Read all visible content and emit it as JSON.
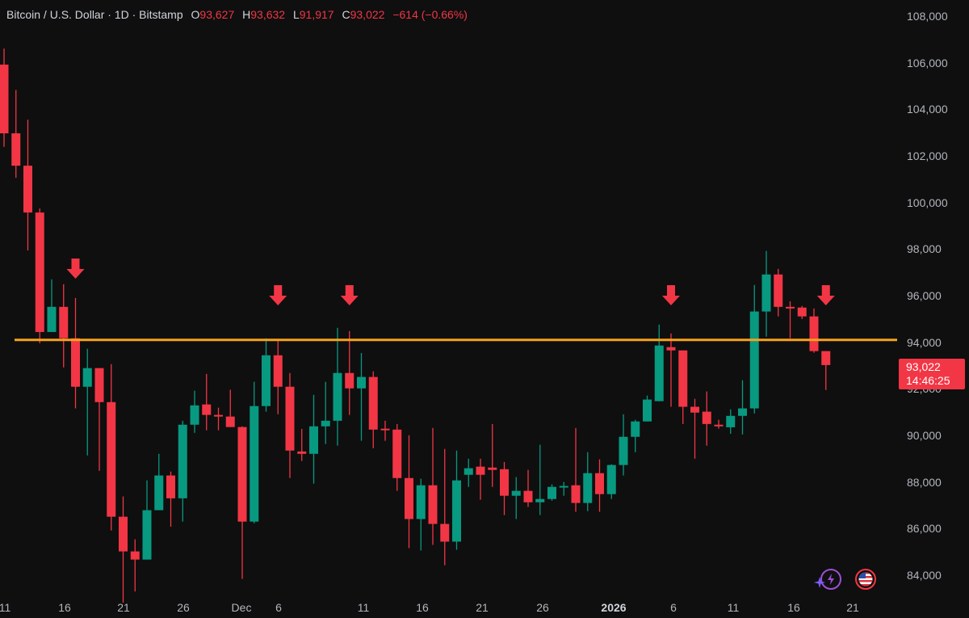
{
  "legend": {
    "symbol": "Bitcoin / U.S. Dollar · 1D · Bitstamp",
    "o_label": "O",
    "o_value": "93,627",
    "h_label": "H",
    "h_value": "93,632",
    "l_label": "L",
    "l_value": "91,917",
    "c_label": "C",
    "c_value": "93,022",
    "change": "−614 (−0.66%)"
  },
  "price_tag": {
    "price": "93,022",
    "countdown": "14:46:25"
  },
  "icons": {
    "left": "lightning-sparkle-icon",
    "right": "us-flag-icon"
  },
  "colors": {
    "up": "#089981",
    "down": "#f23645",
    "level_line": "#f7a21b",
    "arrow": "#f23645",
    "background": "#0f0f0f"
  },
  "chart_data": {
    "type": "candlestick",
    "title": "Bitcoin / U.S. Dollar · 1D · Bitstamp",
    "xlabel": "",
    "ylabel": "",
    "ylim": [
      83200,
      108700
    ],
    "y_ticks": [
      "108,000",
      "106,000",
      "104,000",
      "102,000",
      "100,000",
      "98,000",
      "96,000",
      "94,000",
      "92,000",
      "90,000",
      "88,000",
      "86,000",
      "84,000"
    ],
    "x_ticks": [
      "11",
      "16",
      "21",
      "26",
      "Dec",
      "6",
      "11",
      "16",
      "21",
      "26",
      "2026",
      "6",
      "11",
      "16",
      "21"
    ],
    "horizontal_level": 94100,
    "resistance_arrows_at_candle_index": [
      6,
      23,
      29,
      56,
      69
    ],
    "candles": [
      [
        105920,
        102970,
        106610,
        102390
      ],
      [
        102970,
        101580,
        104830,
        101060
      ],
      [
        101580,
        99570,
        103550,
        97940
      ],
      [
        99570,
        94440,
        99740,
        93960
      ],
      [
        94440,
        95520,
        96700,
        94440
      ],
      [
        95520,
        94170,
        96490,
        92920
      ],
      [
        94170,
        92090,
        95900,
        91160
      ],
      [
        92090,
        92890,
        93720,
        89140
      ],
      [
        92890,
        91430,
        92890,
        88480
      ],
      [
        91430,
        86510,
        93060,
        85920
      ],
      [
        86510,
        85020,
        87380,
        82820
      ],
      [
        85020,
        84670,
        85540,
        83300
      ],
      [
        84670,
        86790,
        88070,
        84670
      ],
      [
        86790,
        88280,
        89210,
        87230
      ],
      [
        88280,
        87300,
        88450,
        86080
      ],
      [
        87300,
        90460,
        90630,
        86300
      ],
      [
        90460,
        91290,
        91920,
        90110
      ],
      [
        91330,
        90880,
        92640,
        90220
      ],
      [
        90880,
        90810,
        91190,
        90220
      ],
      [
        90810,
        90360,
        91960,
        90360
      ],
      [
        90360,
        86300,
        90390,
        83840
      ],
      [
        86300,
        91260,
        92300,
        86230
      ],
      [
        91260,
        93440,
        94170,
        91020
      ],
      [
        93440,
        92090,
        94060,
        90910
      ],
      [
        92090,
        89350,
        92680,
        88170
      ],
      [
        89310,
        89210,
        90280,
        88900
      ],
      [
        89210,
        90390,
        91740,
        87930
      ],
      [
        90390,
        90630,
        92300,
        89630
      ],
      [
        90630,
        92680,
        94620,
        89560
      ],
      [
        92680,
        92020,
        94480,
        90880
      ],
      [
        92020,
        92510,
        93540,
        89770
      ],
      [
        92510,
        90250,
        92750,
        89450
      ],
      [
        90290,
        90250,
        90630,
        89770
      ],
      [
        90250,
        88170,
        90490,
        87620
      ],
      [
        88170,
        86410,
        90010,
        85160
      ],
      [
        86410,
        87860,
        88140,
        85060
      ],
      [
        87860,
        86200,
        90320,
        85300
      ],
      [
        86200,
        85440,
        89420,
        84430
      ],
      [
        85440,
        88070,
        89350,
        85090
      ],
      [
        88310,
        88590,
        89000,
        87790
      ],
      [
        88660,
        88310,
        89000,
        87240
      ],
      [
        88620,
        88520,
        90490,
        87790
      ],
      [
        88550,
        87410,
        88860,
        86580
      ],
      [
        87410,
        87620,
        88210,
        86410
      ],
      [
        87620,
        87130,
        88520,
        86930
      ],
      [
        87130,
        87270,
        89600,
        86580
      ],
      [
        87270,
        87790,
        87900,
        87200
      ],
      [
        87790,
        87830,
        88000,
        87410
      ],
      [
        87860,
        87100,
        90320,
        86720
      ],
      [
        87100,
        88380,
        89280,
        86750
      ],
      [
        88380,
        87480,
        88970,
        86720
      ],
      [
        87480,
        88730,
        88760,
        87270
      ],
      [
        88730,
        89940,
        90910,
        88280
      ],
      [
        89940,
        90600,
        90670,
        89280
      ],
      [
        90600,
        91540,
        91710,
        90600
      ],
      [
        91470,
        93860,
        94760,
        91470
      ],
      [
        93790,
        93650,
        94380,
        91230
      ],
      [
        93650,
        91230,
        93650,
        90490
      ],
      [
        91230,
        90980,
        91570,
        89000
      ],
      [
        91020,
        90490,
        91890,
        89560
      ],
      [
        90460,
        90390,
        90670,
        90290
      ],
      [
        90350,
        90840,
        91120,
        90070
      ],
      [
        90840,
        91160,
        92370,
        90040
      ],
      [
        91160,
        95320,
        96460,
        90940
      ],
      [
        95320,
        96910,
        97920,
        94240
      ],
      [
        96910,
        95520,
        97150,
        95110
      ],
      [
        95520,
        95490,
        95760,
        94170
      ],
      [
        95490,
        95110,
        95560,
        95000
      ],
      [
        95110,
        93620,
        95450,
        93550
      ],
      [
        93620,
        93020,
        93620,
        91950
      ]
    ]
  }
}
